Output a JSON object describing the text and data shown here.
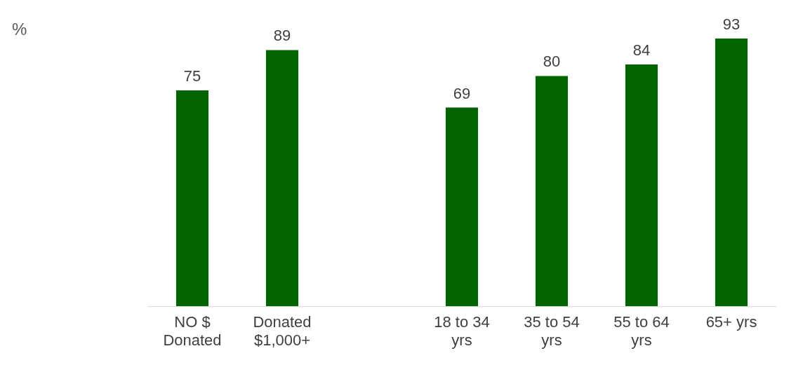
{
  "chart_data": {
    "type": "bar",
    "annotations": [
      "%"
    ],
    "categories": [
      "NO $\nDonated",
      "Donated\n$1,000+",
      null,
      "18 to 34\nyrs",
      "35 to 54\nyrs",
      "55 to 64\nyrs",
      "65+ yrs"
    ],
    "values": [
      75,
      89,
      null,
      69,
      80,
      84,
      93
    ],
    "color": "#006400",
    "data_labels": true
  }
}
